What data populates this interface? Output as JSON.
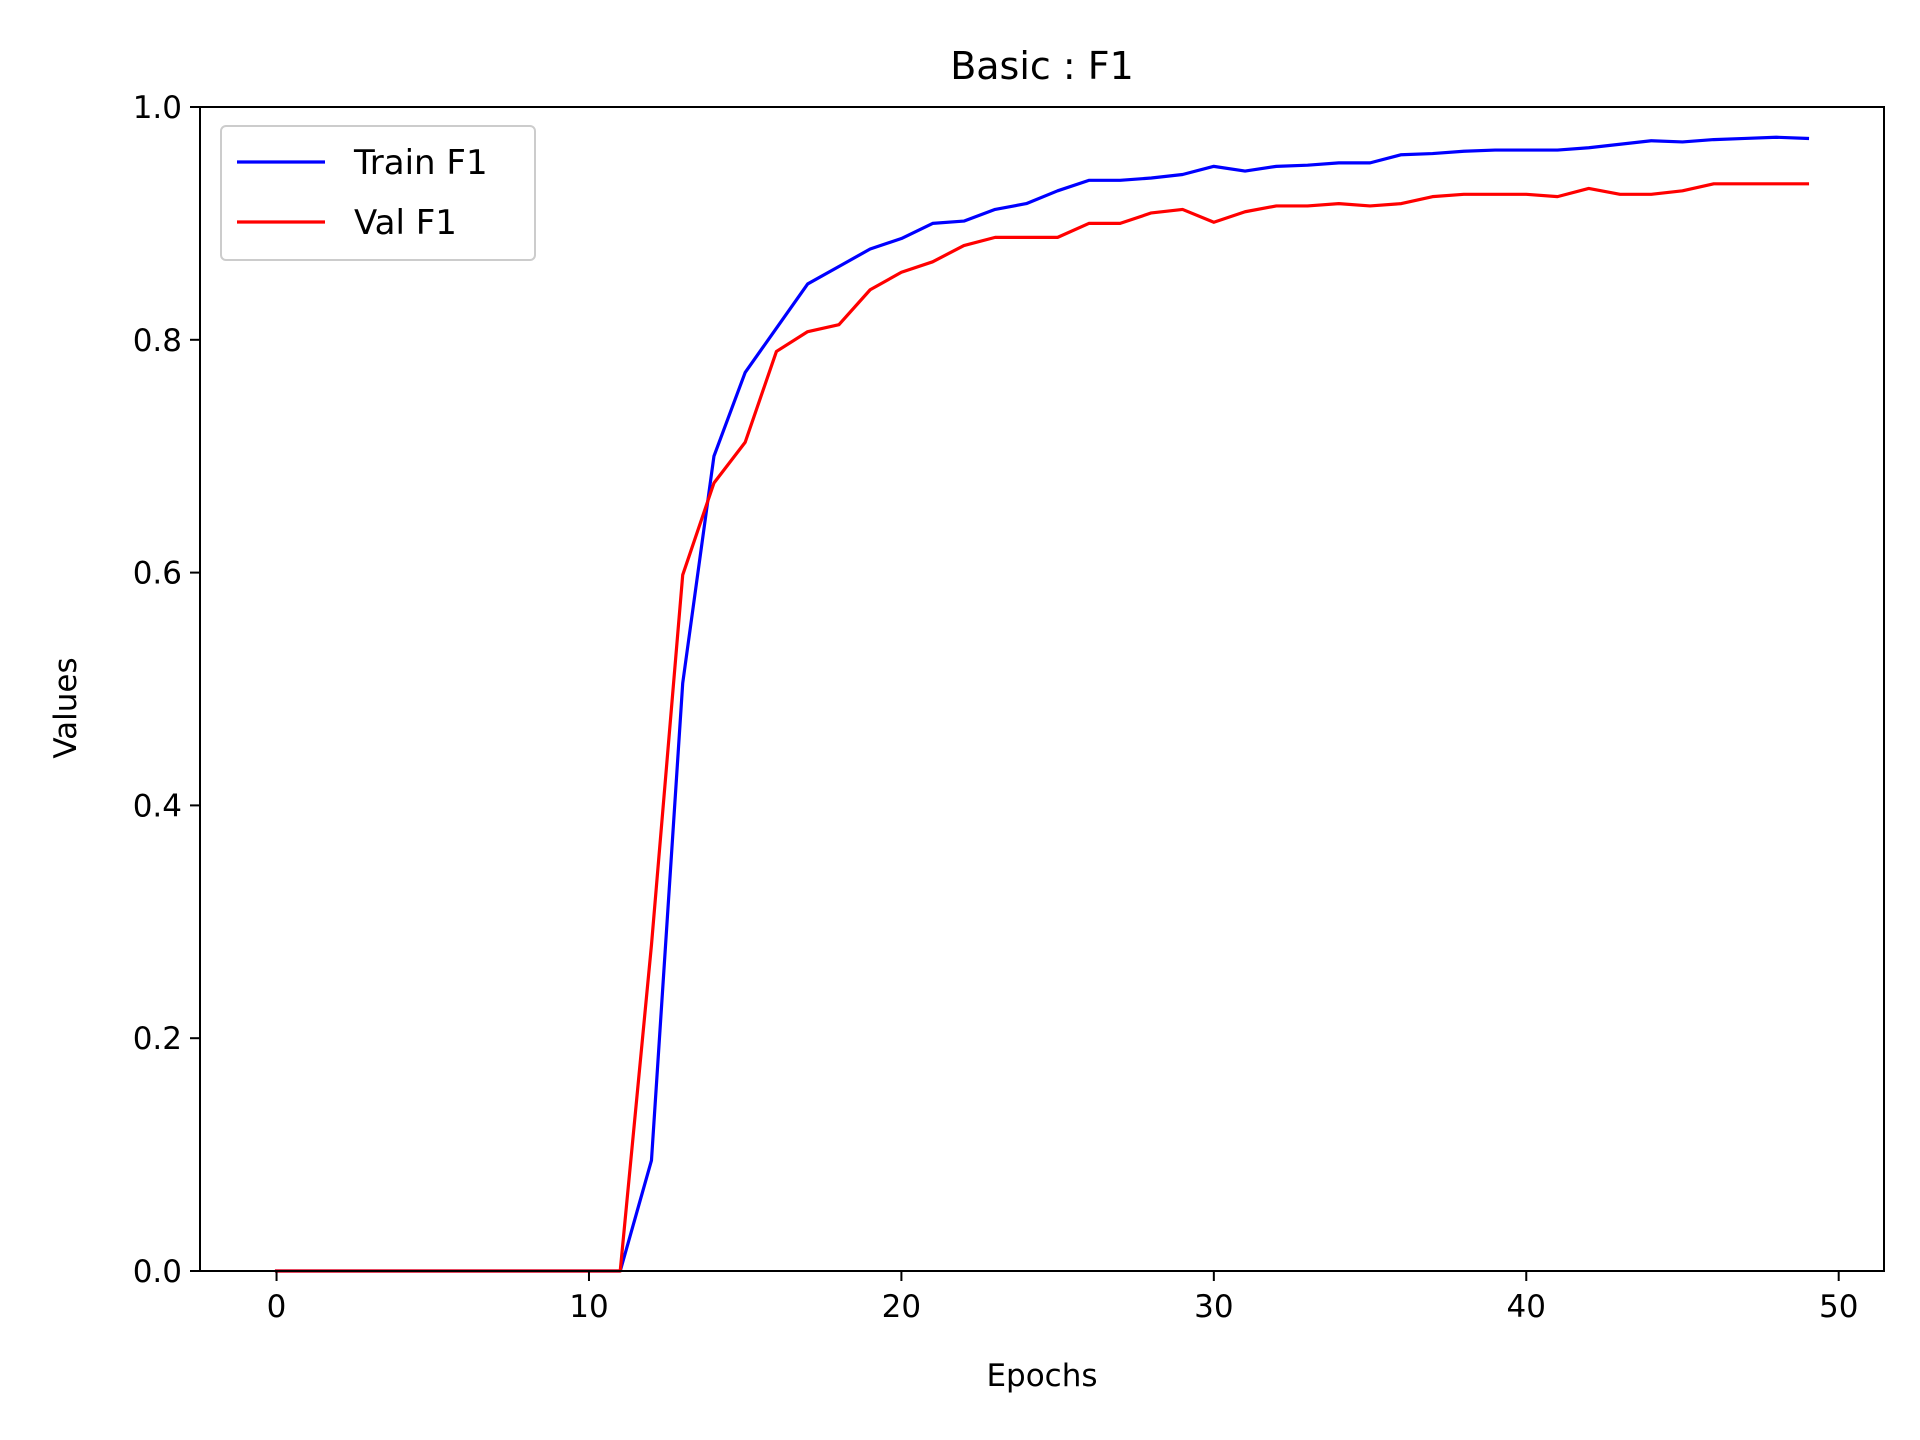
{
  "chart_data": {
    "type": "line",
    "title": "Basic : F1",
    "xlabel": "Epochs",
    "ylabel": "Values",
    "xlim": [
      -2.45,
      51.45
    ],
    "ylim": [
      0.0,
      1.0
    ],
    "xticks": [
      0,
      10,
      20,
      30,
      40,
      50
    ],
    "yticks": [
      0.0,
      0.2,
      0.4,
      0.6,
      0.8,
      1.0
    ],
    "xtick_labels": [
      "0",
      "10",
      "20",
      "30",
      "40",
      "50"
    ],
    "ytick_labels": [
      "0.0",
      "0.2",
      "0.4",
      "0.6",
      "0.8",
      "1.0"
    ],
    "grid": false,
    "legend_position": "top-left",
    "x": [
      0,
      1,
      2,
      3,
      4,
      5,
      6,
      7,
      8,
      9,
      10,
      11,
      12,
      13,
      14,
      15,
      16,
      17,
      18,
      19,
      20,
      21,
      22,
      23,
      24,
      25,
      26,
      27,
      28,
      29,
      30,
      31,
      32,
      33,
      34,
      35,
      36,
      37,
      38,
      39,
      40,
      41,
      42,
      43,
      44,
      45,
      46,
      47,
      48,
      49
    ],
    "series": [
      {
        "name": "Train F1",
        "color": "#0000ff",
        "values": [
          0,
          0,
          0,
          0,
          0,
          0,
          0,
          0,
          0,
          0,
          0,
          0,
          0.095,
          0.505,
          0.7,
          0.772,
          0.81,
          0.848,
          0.863,
          0.878,
          0.887,
          0.9,
          0.902,
          0.912,
          0.917,
          0.928,
          0.937,
          0.937,
          0.939,
          0.942,
          0.949,
          0.945,
          0.949,
          0.95,
          0.952,
          0.952,
          0.959,
          0.96,
          0.962,
          0.963,
          0.963,
          0.963,
          0.965,
          0.968,
          0.971,
          0.97,
          0.972,
          0.973,
          0.974,
          0.973
        ]
      },
      {
        "name": "Val F1",
        "color": "#ff0000",
        "values": [
          0,
          0,
          0,
          0,
          0,
          0,
          0,
          0,
          0,
          0,
          0,
          0,
          0.28,
          0.598,
          0.677,
          0.712,
          0.79,
          0.807,
          0.813,
          0.843,
          0.858,
          0.867,
          0.881,
          0.888,
          0.888,
          0.888,
          0.9,
          0.9,
          0.909,
          0.912,
          0.901,
          0.91,
          0.915,
          0.915,
          0.917,
          0.915,
          0.917,
          0.923,
          0.925,
          0.925,
          0.925,
          0.923,
          0.93,
          0.925,
          0.925,
          0.928,
          0.934,
          0.934,
          0.934,
          0.934
        ]
      }
    ]
  }
}
